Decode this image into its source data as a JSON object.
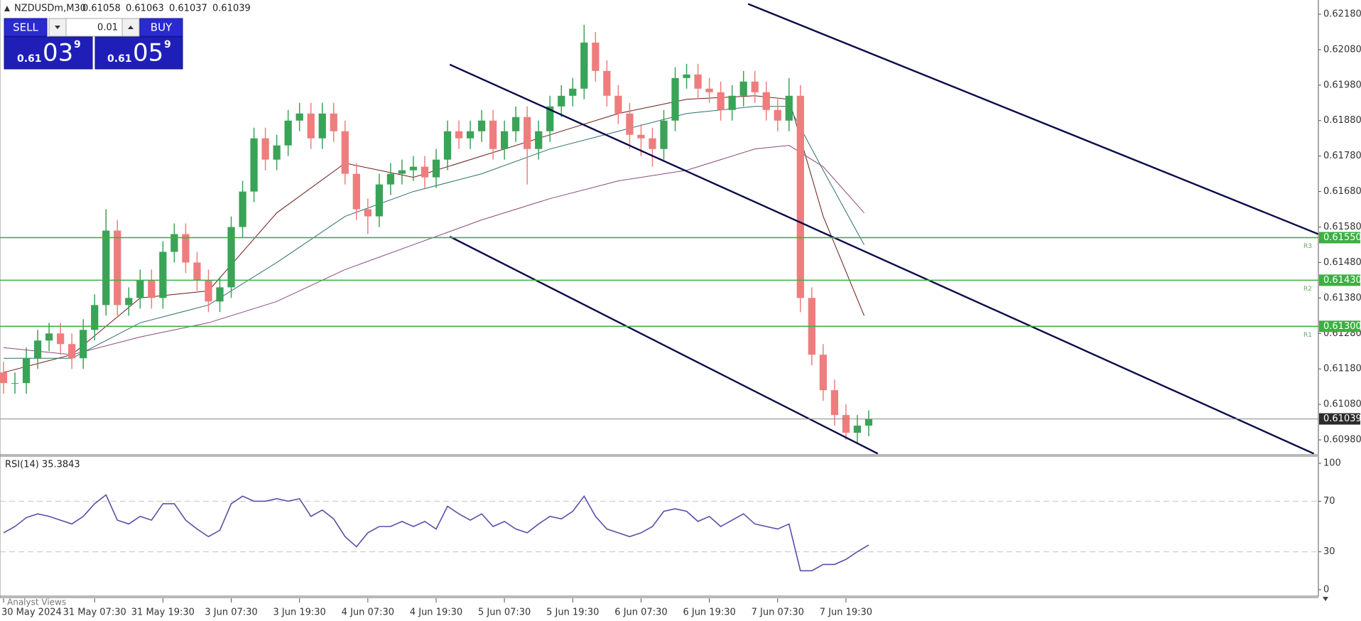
{
  "header": {
    "symbol": "NZDUSDm,M30",
    "ohlc": [
      "0.61058",
      "0.61063",
      "0.61037",
      "0.61039"
    ]
  },
  "trade_panel": {
    "sell": "SELL",
    "buy": "BUY",
    "lot": "0.01",
    "bid": {
      "big": "0.61",
      "main": "03",
      "sup": "9"
    },
    "ask": {
      "big": "0.61",
      "main": "05",
      "sup": "9"
    }
  },
  "bottom_tab": "Analyst Views",
  "chart_data": [
    {
      "type": "candlestick",
      "up_color": "#3aa357",
      "down_color": "#ef7d7d",
      "open": [
        0.6117,
        0.6114,
        0.6114,
        0.6121,
        0.6126,
        0.6128,
        0.6125,
        0.6121,
        0.6129,
        0.6136,
        0.6157,
        0.6136,
        0.6138,
        0.6143,
        0.6138,
        0.6151,
        0.6156,
        0.6148,
        0.6143,
        0.6137,
        0.6141,
        0.6158,
        0.6168,
        0.6183,
        0.6177,
        0.6181,
        0.6188,
        0.619,
        0.6183,
        0.619,
        0.6185,
        0.6173,
        0.6163,
        0.6161,
        0.617,
        0.6173,
        0.6174,
        0.6175,
        0.6172,
        0.6177,
        0.6185,
        0.6183,
        0.6185,
        0.6188,
        0.618,
        0.6185,
        0.6189,
        0.618,
        0.6185,
        0.6192,
        0.6195,
        0.6197,
        0.621,
        0.6202,
        0.6195,
        0.619,
        0.6184,
        0.6183,
        0.618,
        0.6188,
        0.62,
        0.6201,
        0.6197,
        0.6196,
        0.6191,
        0.6195,
        0.6199,
        0.6196,
        0.6191,
        0.6188,
        0.6195,
        0.6138,
        0.6122,
        0.6112,
        0.6105,
        0.61,
        0.6102
      ],
      "high": [
        0.612,
        0.6117,
        0.6124,
        0.6129,
        0.6131,
        0.6131,
        0.6128,
        0.6132,
        0.6139,
        0.6163,
        0.616,
        0.6141,
        0.6146,
        0.6146,
        0.6154,
        0.6159,
        0.6159,
        0.6151,
        0.6146,
        0.6144,
        0.6161,
        0.6171,
        0.6186,
        0.6186,
        0.6184,
        0.6191,
        0.6193,
        0.6193,
        0.6193,
        0.6193,
        0.6188,
        0.6176,
        0.6166,
        0.6173,
        0.6176,
        0.6177,
        0.6178,
        0.6178,
        0.618,
        0.6188,
        0.6188,
        0.6188,
        0.6191,
        0.6191,
        0.6188,
        0.6192,
        0.6192,
        0.6188,
        0.6195,
        0.6198,
        0.62,
        0.6215,
        0.6213,
        0.6205,
        0.6198,
        0.6193,
        0.6187,
        0.6186,
        0.6191,
        0.6203,
        0.6204,
        0.6204,
        0.62,
        0.6199,
        0.6198,
        0.6202,
        0.6202,
        0.6199,
        0.6194,
        0.62,
        0.6198,
        0.6141,
        0.6125,
        0.6115,
        0.6108,
        0.6105,
        0.61063
      ],
      "low": [
        0.6111,
        0.6111,
        0.6111,
        0.6118,
        0.6123,
        0.6122,
        0.6118,
        0.6118,
        0.6126,
        0.6133,
        0.6133,
        0.6133,
        0.6135,
        0.6135,
        0.6135,
        0.6148,
        0.6145,
        0.614,
        0.6134,
        0.6134,
        0.6138,
        0.6155,
        0.6165,
        0.6174,
        0.6174,
        0.6178,
        0.6185,
        0.618,
        0.618,
        0.6182,
        0.617,
        0.616,
        0.6156,
        0.6158,
        0.6167,
        0.617,
        0.6171,
        0.6169,
        0.6169,
        0.6174,
        0.618,
        0.618,
        0.6182,
        0.6177,
        0.6177,
        0.6182,
        0.617,
        0.6177,
        0.6182,
        0.6189,
        0.6192,
        0.6194,
        0.6199,
        0.6192,
        0.6187,
        0.618,
        0.6178,
        0.6175,
        0.6177,
        0.6185,
        0.6197,
        0.6194,
        0.6193,
        0.6188,
        0.6188,
        0.6192,
        0.6193,
        0.6188,
        0.6185,
        0.6185,
        0.6134,
        0.6119,
        0.6109,
        0.6102,
        0.6098,
        0.6097,
        0.6099
      ],
      "close": [
        0.6114,
        0.6114,
        0.6121,
        0.6126,
        0.6128,
        0.6125,
        0.6121,
        0.6129,
        0.6136,
        0.6157,
        0.6136,
        0.6138,
        0.6143,
        0.6138,
        0.6151,
        0.6156,
        0.6148,
        0.6143,
        0.6137,
        0.6141,
        0.6158,
        0.6168,
        0.6183,
        0.6177,
        0.6181,
        0.6188,
        0.619,
        0.6183,
        0.619,
        0.6185,
        0.6173,
        0.6163,
        0.6161,
        0.617,
        0.6173,
        0.6174,
        0.6175,
        0.6172,
        0.6177,
        0.6185,
        0.6183,
        0.6185,
        0.6188,
        0.618,
        0.6185,
        0.6189,
        0.618,
        0.6185,
        0.6192,
        0.6195,
        0.6197,
        0.621,
        0.6202,
        0.6195,
        0.619,
        0.6184,
        0.6183,
        0.618,
        0.6188,
        0.62,
        0.6201,
        0.6197,
        0.6196,
        0.6191,
        0.6195,
        0.6199,
        0.6196,
        0.6191,
        0.6188,
        0.6195,
        0.6138,
        0.6122,
        0.6112,
        0.6105,
        0.61,
        0.6102,
        0.61039
      ],
      "moving_averages": [
        {
          "color": "#6b1a1a",
          "x": [
            0,
            6,
            12,
            18,
            24,
            30,
            36,
            42,
            48,
            54,
            60,
            66,
            69,
            72,
            75.6
          ],
          "values": [
            0.6117,
            0.6122,
            0.6138,
            0.614,
            0.6162,
            0.6176,
            0.6172,
            0.6178,
            0.6184,
            0.619,
            0.6194,
            0.6195,
            0.6194,
            0.6161,
            0.6133
          ]
        },
        {
          "color": "#2f6f6f",
          "x": [
            0,
            6,
            12,
            18,
            24,
            30,
            36,
            42,
            48,
            54,
            60,
            66,
            69,
            72,
            75.6
          ],
          "values": [
            0.6121,
            0.6121,
            0.6131,
            0.6136,
            0.6148,
            0.6161,
            0.6168,
            0.6173,
            0.618,
            0.6185,
            0.619,
            0.6192,
            0.6192,
            0.6174,
            0.6153
          ]
        },
        {
          "color": "#8a4a7a",
          "x": [
            0,
            6,
            12,
            18,
            24,
            30,
            36,
            42,
            48,
            54,
            60,
            66,
            69,
            72,
            75.6
          ],
          "values": [
            0.6124,
            0.6122,
            0.6127,
            0.6131,
            0.6137,
            0.6146,
            0.6153,
            0.616,
            0.6166,
            0.6171,
            0.6174,
            0.618,
            0.6181,
            0.6175,
            0.6162
          ]
        }
      ],
      "trendline_color": "#0b0b4a",
      "trendlines": [
        {
          "x": [
            65.4,
            115.5
          ],
          "values": [
            0.62209,
            0.6156
          ]
        },
        {
          "x": [
            39.2,
            115.1
          ],
          "values": [
            0.62038,
            0.60941
          ]
        },
        {
          "x": [
            39.2,
            76.8
          ],
          "values": [
            0.61553,
            0.60941
          ]
        }
      ],
      "level_color": "#3cb043",
      "levels": [
        {
          "value": 0.6155,
          "value_label": "0.61550",
          "tag": "R3"
        },
        {
          "value": 0.6143,
          "value_label": "0.61430",
          "tag": "R2"
        },
        {
          "value": 0.613,
          "value_label": "0.61300",
          "tag": "R1"
        }
      ],
      "current_price": {
        "value": 0.61039,
        "label": "0.61039"
      },
      "xlim": [
        0,
        115.5
      ],
      "ylim": [
        0.6094,
        0.6221
      ],
      "yticks": [
        {
          "value": 0.6218,
          "label": "0.62180"
        },
        {
          "value": 0.6208,
          "label": "0.62080"
        },
        {
          "value": 0.6198,
          "label": "0.61980"
        },
        {
          "value": 0.6188,
          "label": "0.61880"
        },
        {
          "value": 0.6178,
          "label": "0.61780"
        },
        {
          "value": 0.6168,
          "label": "0.61680"
        },
        {
          "value": 0.6158,
          "label": "0.61580"
        },
        {
          "value": 0.6148,
          "label": "0.61480"
        },
        {
          "value": 0.6138,
          "label": "0.61380"
        },
        {
          "value": 0.6128,
          "label": "0.61280"
        },
        {
          "value": 0.6118,
          "label": "0.61180"
        },
        {
          "value": 0.6108,
          "label": "0.61080"
        },
        {
          "value": 0.6098,
          "label": "0.60980"
        }
      ],
      "xticks": [
        {
          "value": 0,
          "label": "30 May 2024"
        },
        {
          "value": 8,
          "label": "31 May 07:30"
        },
        {
          "value": 14,
          "label": "31 May 19:30"
        },
        {
          "value": 20,
          "label": "3 Jun 07:30"
        },
        {
          "value": 26,
          "label": "3 Jun 19:30"
        },
        {
          "value": 32,
          "label": "4 Jun 07:30"
        },
        {
          "value": 38,
          "label": "4 Jun 19:30"
        },
        {
          "value": 44,
          "label": "5 Jun 07:30"
        },
        {
          "value": 50,
          "label": "5 Jun 19:30"
        },
        {
          "value": 56,
          "label": "6 Jun 07:30"
        },
        {
          "value": 62,
          "label": "6 Jun 19:30"
        },
        {
          "value": 68,
          "label": "7 Jun 07:30"
        },
        {
          "value": 74,
          "label": "7 Jun 19:30"
        }
      ]
    },
    {
      "type": "line",
      "label": "RSI(14) 35.3843",
      "color": "#5b4ea8",
      "values": [
        45,
        50,
        57,
        60,
        58,
        55,
        52,
        58,
        68,
        75,
        55,
        52,
        58,
        55,
        68,
        68,
        55,
        48,
        42,
        47,
        68,
        74,
        70,
        70,
        72,
        70,
        72,
        58,
        63,
        56,
        42,
        34,
        45,
        50,
        50,
        54,
        50,
        54,
        48,
        66,
        60,
        55,
        60,
        50,
        54,
        48,
        45,
        52,
        58,
        56,
        62,
        74,
        58,
        48,
        45,
        42,
        45,
        50,
        62,
        64,
        62,
        54,
        58,
        50,
        55,
        60,
        52,
        50,
        48,
        52,
        15,
        15,
        20,
        20,
        24,
        30,
        35.3843
      ],
      "xlim": [
        0,
        115.5
      ],
      "ylim": [
        0,
        100
      ],
      "yticks": [
        100,
        70,
        30,
        0
      ],
      "levels": [
        70,
        30
      ],
      "level_color": "#c4c4c4"
    }
  ]
}
